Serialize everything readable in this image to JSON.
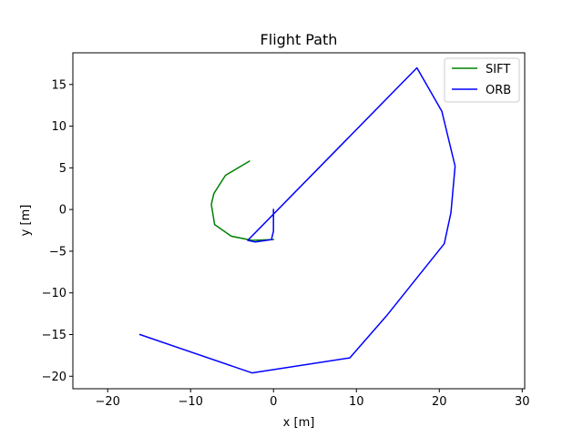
{
  "chart_data": {
    "type": "line",
    "title": "Flight Path",
    "xlabel": "x [m]",
    "ylabel": "y [m]",
    "xlim": [
      -24.2,
      30.3
    ],
    "ylim": [
      -21.5,
      18.8
    ],
    "xticks": [
      -20,
      -10,
      0,
      10,
      20,
      30
    ],
    "yticks": [
      -20,
      -15,
      -10,
      -5,
      0,
      5,
      10,
      15
    ],
    "grid": false,
    "legend_position": "top-right",
    "series": [
      {
        "name": "SIFT",
        "color": "#008000",
        "x": [
          -2.9,
          -5.8,
          -7.2,
          -7.5,
          -7.1,
          -5.1,
          -2.6,
          0.0
        ],
        "y": [
          5.8,
          4.1,
          1.9,
          0.6,
          -1.8,
          -3.2,
          -3.7,
          -3.6
        ]
      },
      {
        "name": "ORB",
        "color": "#0000ff",
        "x": [
          0.0,
          0.0,
          -0.2,
          -0.2,
          -2.2,
          -3.1,
          17.3,
          20.3,
          21.9,
          21.4,
          20.6,
          13.6,
          9.2,
          -2.6,
          -16.1
        ],
        "y": [
          0.0,
          -2.6,
          -3.4,
          -3.6,
          -3.9,
          -3.7,
          17.0,
          11.8,
          5.2,
          -0.4,
          -4.1,
          -12.8,
          -17.8,
          -19.6,
          -15.0
        ]
      }
    ]
  }
}
